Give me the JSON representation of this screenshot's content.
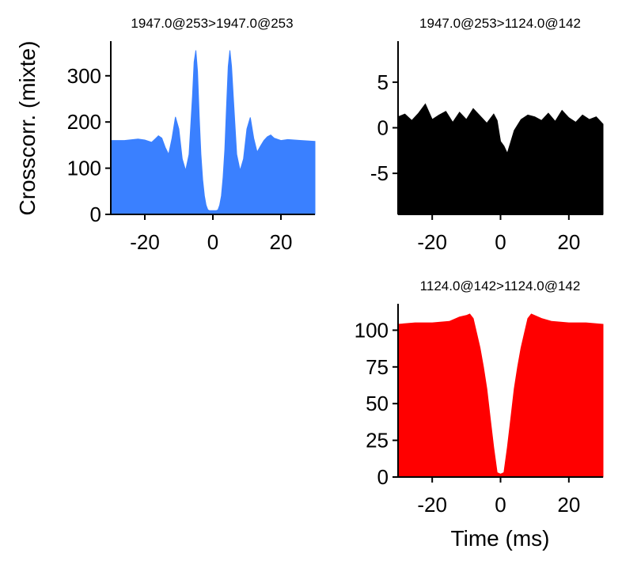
{
  "chart_data": [
    {
      "type": "area",
      "title": "1947.0@253>1947.0@253",
      "xlabel": "",
      "ylabel": "Crosscorr. (mixte)",
      "xlim": [
        -30,
        30
      ],
      "ylim": [
        0,
        375
      ],
      "xticks": [
        -20,
        0,
        20
      ],
      "yticks": [
        0,
        100,
        200,
        300
      ],
      "color": "#3a80ff",
      "x": [
        -30,
        -26,
        -22,
        -20,
        -18,
        -17,
        -16,
        -15,
        -14,
        -13,
        -12,
        -11,
        -10,
        -9,
        -8,
        -7,
        -6,
        -5.5,
        -5,
        -4.5,
        -4,
        -3.5,
        -3,
        -2.5,
        -2,
        -1.5,
        -1,
        0,
        1,
        1.5,
        2,
        2.5,
        3,
        3.5,
        4,
        4.5,
        5,
        5.5,
        6,
        7,
        8,
        9,
        10,
        11,
        12,
        13,
        14,
        15,
        16,
        17,
        18,
        20,
        22,
        26,
        30
      ],
      "y": [
        160,
        160,
        163,
        161,
        156,
        163,
        170,
        165,
        145,
        130,
        165,
        211,
        185,
        120,
        95,
        130,
        255,
        330,
        355,
        310,
        210,
        130,
        75,
        40,
        20,
        10,
        8,
        8,
        8,
        10,
        20,
        40,
        80,
        140,
        230,
        320,
        355,
        320,
        255,
        130,
        95,
        120,
        185,
        210,
        165,
        135,
        148,
        160,
        168,
        172,
        165,
        160,
        162,
        160,
        158
      ]
    },
    {
      "type": "area",
      "title": "1947.0@253>1124.0@142",
      "xlabel": "",
      "ylabel": "",
      "xlim": [
        -30,
        30
      ],
      "ylim": [
        -9.5,
        9.5
      ],
      "xticks": [
        -20,
        0,
        20
      ],
      "yticks": [
        -5,
        0,
        5
      ],
      "color": "#000000",
      "x": [
        -30,
        -28,
        -26,
        -24,
        -22,
        -20,
        -18,
        -16,
        -14,
        -12,
        -10,
        -8,
        -6,
        -4,
        -2,
        -1,
        0,
        1,
        2,
        4,
        6,
        8,
        10,
        12,
        14,
        16,
        18,
        20,
        22,
        24,
        26,
        28,
        30
      ],
      "y": [
        1.2,
        1.5,
        0.8,
        1.6,
        2.6,
        0.9,
        1.4,
        1.8,
        0.6,
        1.7,
        0.9,
        2.1,
        1.3,
        0.5,
        1.5,
        0.8,
        -1.5,
        -2.0,
        -2.8,
        -0.3,
        0.9,
        1.4,
        1.2,
        0.8,
        1.6,
        0.7,
        1.9,
        1.1,
        0.6,
        1.4,
        0.9,
        1.2,
        0.4
      ]
    },
    {
      "type": "area",
      "title": "1124.0@142>1124.0@142",
      "xlabel": "Time (ms)",
      "ylabel": "",
      "xlim": [
        -30,
        30
      ],
      "ylim": [
        0,
        118
      ],
      "xticks": [
        -20,
        0,
        20
      ],
      "yticks": [
        0,
        25,
        50,
        75,
        100
      ],
      "color": "#ff0000",
      "x": [
        -30,
        -25,
        -20,
        -15,
        -12,
        -10,
        -9,
        -8,
        -7,
        -6,
        -5,
        -4,
        -3,
        -2,
        -1,
        0,
        1,
        2,
        3,
        4,
        5,
        6,
        7,
        8,
        9,
        10,
        12,
        15,
        20,
        25,
        30
      ],
      "y": [
        104,
        105,
        105,
        106,
        109,
        110,
        111,
        108,
        98,
        88,
        75,
        60,
        40,
        20,
        3,
        2,
        3,
        20,
        40,
        60,
        75,
        88,
        98,
        108,
        111,
        110,
        108,
        106,
        105,
        105,
        104
      ]
    }
  ]
}
